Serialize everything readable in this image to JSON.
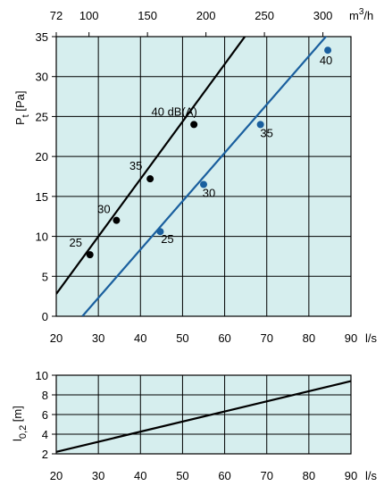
{
  "colors": {
    "plot_background": "#d6eeee",
    "grid": "#000000",
    "black_series": "#000000",
    "blue_series": "#1a5f9e"
  },
  "chart_data": [
    {
      "type": "line",
      "xlabel": "l/s",
      "ylabel": "Pt [Pa]",
      "xlim": [
        20,
        90
      ],
      "ylim": [
        0,
        35
      ],
      "x_ticks": [
        "20",
        "30",
        "40",
        "50",
        "60",
        "70",
        "80",
        "90"
      ],
      "y_ticks": [
        "0",
        "5",
        "10",
        "15",
        "20",
        "25",
        "30",
        "35"
      ],
      "secondary_x_axis": {
        "label": "m3/h",
        "ticks": [
          {
            "label": "72",
            "value": 72
          },
          {
            "label": "100",
            "value": 100
          },
          {
            "label": "150",
            "value": 150
          },
          {
            "label": "200",
            "value": 200
          },
          {
            "label": "250",
            "value": 250
          },
          {
            "label": "300",
            "value": 300
          }
        ]
      },
      "grid": true,
      "series": [
        {
          "color": "#000000",
          "line": {
            "x": [
              20,
              64.8
            ],
            "y": [
              2.8,
              35
            ]
          },
          "points": [
            {
              "label": "25",
              "x": 28,
              "y": 7.7
            },
            {
              "label": "30",
              "x": 34.3,
              "y": 12
            },
            {
              "label": "35",
              "x": 42.3,
              "y": 17.2
            },
            {
              "label": "40 dB(A)",
              "x": 52.7,
              "y": 24
            }
          ]
        },
        {
          "color": "#1a5f9e",
          "line": {
            "x": [
              26.2,
              90
            ],
            "y": [
              0,
              38.6
            ]
          },
          "points": [
            {
              "label": "25",
              "x": 44.7,
              "y": 10.6
            },
            {
              "label": "30",
              "x": 55,
              "y": 16.5
            },
            {
              "label": "35",
              "x": 68.5,
              "y": 24
            },
            {
              "label": "40",
              "x": 84.5,
              "y": 33.3
            }
          ]
        }
      ]
    },
    {
      "type": "line",
      "xlabel": "l/s",
      "ylabel": "l0,2 [m]",
      "xlim": [
        20,
        90
      ],
      "ylim": [
        2,
        10
      ],
      "x_ticks": [
        "20",
        "30",
        "40",
        "50",
        "60",
        "70",
        "80",
        "90"
      ],
      "y_ticks": [
        "2",
        "4",
        "6",
        "8",
        "10"
      ],
      "grid": true,
      "series": [
        {
          "color": "#000000",
          "x": [
            20,
            90
          ],
          "y": [
            2.2,
            9.4
          ]
        }
      ]
    }
  ]
}
